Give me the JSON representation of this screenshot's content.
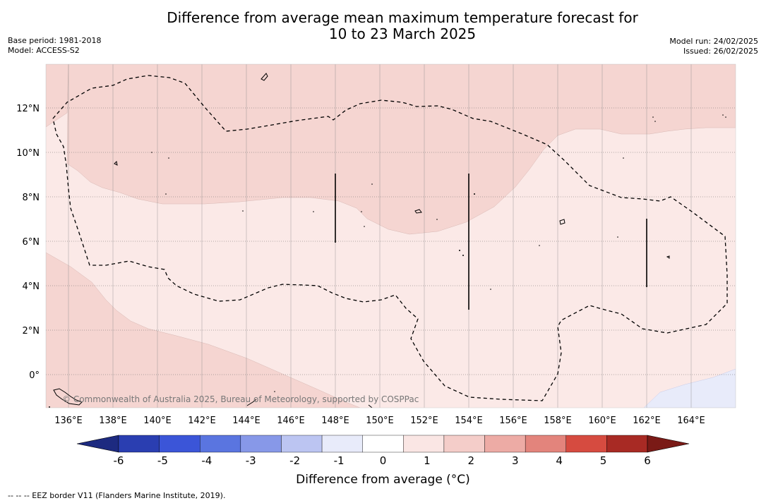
{
  "title_line1": "Difference from average mean maximum temperature forecast for",
  "title_line2": "10 to 23 March 2025",
  "base_period": "Base period: 1981-2018",
  "model": "Model: ACCESS-S2",
  "model_run": "Model run: 24/02/2025",
  "issued": "Issued: 26/02/2025",
  "copyright": "© Commonwealth of Australia 2025, Bureau of Meteorology, supported by COSPPac",
  "colorbar_label": "Difference from average (°C)",
  "footnote": "--  --  -- EEZ border V11 (Flanders Marine Institute, 2019).",
  "map": {
    "lon_labels": [
      "136°E",
      "138°E",
      "140°E",
      "142°E",
      "144°E",
      "146°E",
      "148°E",
      "150°E",
      "152°E",
      "154°E",
      "156°E",
      "158°E",
      "160°E",
      "162°E",
      "164°E"
    ],
    "lat_labels": [
      "12°N",
      "10°N",
      "8°N",
      "6°N",
      "4°N",
      "2°N",
      "0°"
    ]
  },
  "colorbar": {
    "ticks": [
      "-6",
      "-5",
      "-4",
      "-3",
      "-2",
      "-1",
      "0",
      "1",
      "2",
      "3",
      "4",
      "5",
      "6"
    ],
    "colors": [
      "#2a3eb1",
      "#3b55d8",
      "#5a75e0",
      "#8798e8",
      "#bcc5f2",
      "#e8ebfa",
      "#ffffff",
      "#fae6e4",
      "#f4cdc9",
      "#edaba5",
      "#e3847c",
      "#d64b40",
      "#a82a24"
    ],
    "under_color": "#1d2a80",
    "over_color": "#7a1a16"
  },
  "legend": {
    "fill_colors": {
      "pale_red": "#fbe9e7",
      "light_red": "#f5d5d1",
      "pale_blue": "#e8ebfa"
    }
  }
}
